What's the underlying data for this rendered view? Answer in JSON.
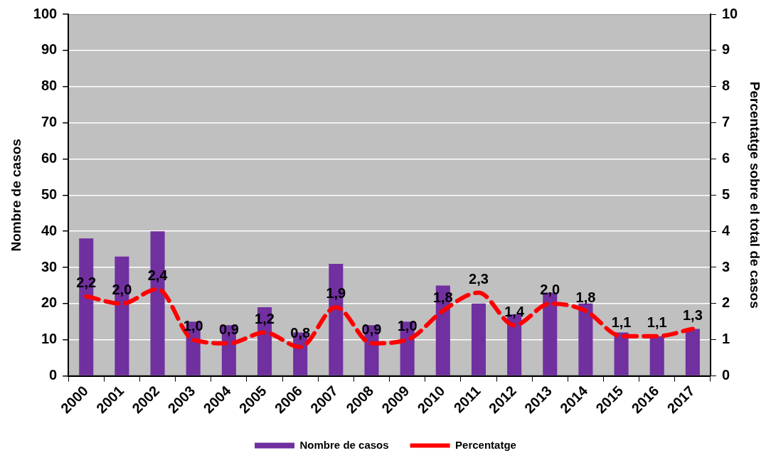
{
  "chart_data": {
    "type": "bar",
    "ylabel": "Nombre de casos",
    "y2label": "Percentatge sobre el total de casos",
    "categories": [
      "2000",
      "2001",
      "2002",
      "2003",
      "2004",
      "2005",
      "2006",
      "2007",
      "2008",
      "2009",
      "2010",
      "2011",
      "2012",
      "2013",
      "2014",
      "2015",
      "2016",
      "2017"
    ],
    "series": [
      {
        "name": "Nombre de casos",
        "color": "#7030a0",
        "values": [
          38,
          33,
          40,
          15,
          14,
          19,
          12,
          31,
          14,
          15,
          25,
          20,
          17,
          23,
          20,
          12,
          11,
          13
        ]
      },
      {
        "name": "Percentatge",
        "type": "line",
        "axis": "y2",
        "color": "#ff0000",
        "line_style": "dashed",
        "marker": "none",
        "values": [
          2.2,
          2.0,
          2.4,
          1.0,
          0.9,
          1.2,
          0.8,
          1.9,
          0.9,
          1.0,
          1.8,
          2.3,
          1.4,
          2.0,
          1.8,
          1.1,
          1.1,
          1.3
        ],
        "value_labels": [
          "2,2",
          "2,0",
          "2,4",
          "1,0",
          "0,9",
          "1,2",
          "0,8",
          "1,9",
          "0,9",
          "1,0",
          "1,8",
          "2,3",
          "1,4",
          "2,0",
          "1,8",
          "1,1",
          "1,1",
          "1,3"
        ]
      }
    ],
    "ylim": [
      0,
      100
    ],
    "yticks": [
      0,
      10,
      20,
      30,
      40,
      50,
      60,
      70,
      80,
      90,
      100
    ],
    "y2lim": [
      0,
      10
    ],
    "y2ticks": [
      0,
      1,
      2,
      3,
      4,
      5,
      6,
      7,
      8,
      9,
      10
    ],
    "grid": "y",
    "legend": "bottom"
  }
}
